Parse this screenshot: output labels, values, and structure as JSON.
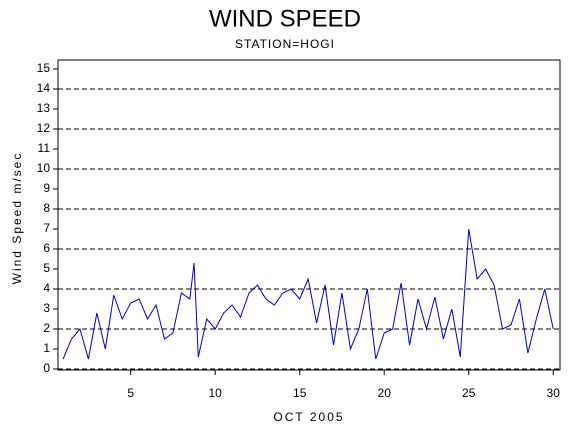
{
  "chart_data": {
    "type": "line",
    "title": "WIND SPEED",
    "subtitle": "STATION=HOGI",
    "y_label": "Wind Speed m/sec",
    "x_label": "OCT 2005",
    "x": [
      1,
      1.5,
      2,
      2.5,
      3,
      3.5,
      4,
      4.5,
      5,
      5.5,
      6,
      6.5,
      7,
      7.5,
      8,
      8.5,
      8.75,
      9,
      9.5,
      10,
      10.5,
      11,
      11.5,
      12,
      12.5,
      13,
      13.5,
      14,
      14.5,
      15,
      15.5,
      16,
      16.5,
      17,
      17.5,
      18,
      18.5,
      19,
      19.5,
      20,
      20.5,
      21,
      21.5,
      22,
      22.5,
      23,
      23.5,
      24,
      24.5,
      25,
      25.5,
      26,
      26.5,
      27,
      27.5,
      28,
      28.5,
      29,
      29.5,
      30
    ],
    "series": [
      {
        "color": "#0000cc",
        "values": [
          0.5,
          1.5,
          2,
          0.5,
          2.8,
          1,
          3.7,
          2.5,
          3.3,
          3.5,
          2.5,
          3.2,
          1.5,
          1.8,
          3.8,
          3.5,
          5.3,
          0.6,
          2.5,
          2,
          2.8,
          3.2,
          2.6,
          3.8,
          4.2,
          3.5,
          3.2,
          3.8,
          4,
          3.5,
          4.5,
          2.3,
          4.2,
          1.2,
          3.8,
          1,
          2,
          4,
          0.5,
          1.8,
          2,
          4.3,
          1.2,
          3.5,
          2,
          3.6,
          1.5,
          3,
          0.6,
          7,
          4.5,
          5,
          4.2,
          2,
          2.2,
          3.5,
          0.8,
          2.5,
          4,
          2
        ]
      }
    ],
    "xlim": [
      0.7,
      30.4
    ],
    "xticks": [
      5,
      10,
      15,
      20,
      25,
      30
    ],
    "ylim": [
      -0.05,
      15.45
    ],
    "yticks": [
      0,
      1,
      2,
      3,
      4,
      5,
      6,
      7,
      8,
      9,
      10,
      11,
      12,
      13,
      14,
      15
    ],
    "gridlines": [
      0,
      2,
      4,
      6,
      8,
      10,
      12,
      14
    ]
  }
}
